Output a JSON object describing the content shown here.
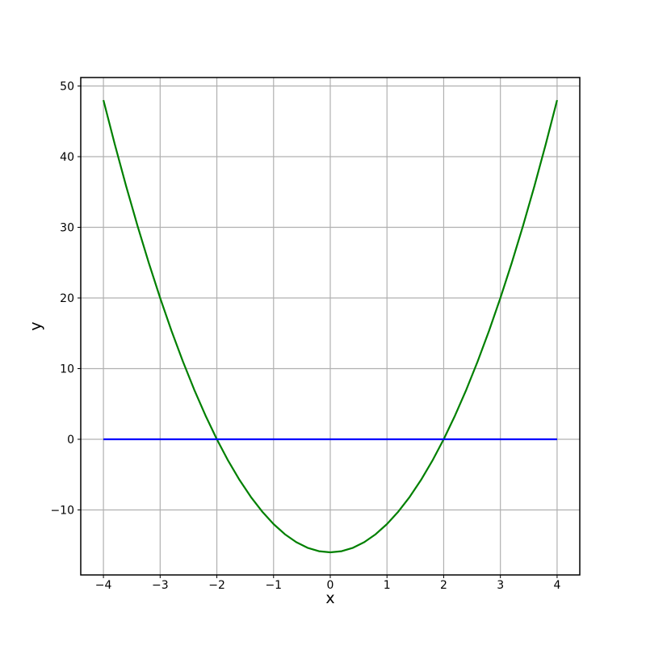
{
  "chart_data": {
    "type": "line",
    "title": "",
    "xlabel": "x",
    "ylabel": "y",
    "xlim": [
      -4.4,
      4.4
    ],
    "ylim": [
      -19.2,
      51.2
    ],
    "grid": true,
    "grid_color": "#b0b0b0",
    "spine_color": "#000000",
    "tick_color": "#000000",
    "text_color": "#000000",
    "background_color": "#ffffff",
    "legend": "none",
    "x_ticks": [
      {
        "value": -4,
        "label": "−4"
      },
      {
        "value": -3,
        "label": "−3"
      },
      {
        "value": -2,
        "label": "−2"
      },
      {
        "value": -1,
        "label": "−1"
      },
      {
        "value": 0,
        "label": "0"
      },
      {
        "value": 1,
        "label": "1"
      },
      {
        "value": 2,
        "label": "2"
      },
      {
        "value": 3,
        "label": "3"
      },
      {
        "value": 4,
        "label": "4"
      }
    ],
    "y_ticks": [
      {
        "value": -10,
        "label": "−10"
      },
      {
        "value": 0,
        "label": "0"
      },
      {
        "value": 10,
        "label": "10"
      },
      {
        "value": 20,
        "label": "20"
      },
      {
        "value": 30,
        "label": "30"
      },
      {
        "value": 40,
        "label": "40"
      },
      {
        "value": 50,
        "label": "50"
      }
    ],
    "series": [
      {
        "name": "green-parabola",
        "color": "#008000",
        "line_width": 2.2,
        "x": [
          -4,
          -3.8,
          -3.6,
          -3.4,
          -3.2,
          -3,
          -2.8,
          -2.6,
          -2.4,
          -2.2,
          -2,
          -1.8,
          -1.6,
          -1.4,
          -1.2,
          -1,
          -0.8,
          -0.6,
          -0.4,
          -0.2,
          0,
          0.2,
          0.4,
          0.6,
          0.8,
          1,
          1.2,
          1.4,
          1.6,
          1.8,
          2,
          2.2,
          2.4,
          2.6,
          2.8,
          3,
          3.2,
          3.4,
          3.6,
          3.8,
          4
        ],
        "y": [
          48,
          41.76,
          35.84,
          30.24,
          24.96,
          20,
          15.36,
          11.04,
          7.04,
          3.36,
          0,
          -3.04,
          -5.76,
          -8.16,
          -10.24,
          -12,
          -13.44,
          -14.56,
          -15.36,
          -15.84,
          -16,
          -15.84,
          -15.36,
          -14.56,
          -13.44,
          -12,
          -10.24,
          -8.16,
          -5.76,
          -3.04,
          0,
          3.36,
          7.04,
          11.04,
          15.36,
          20,
          24.96,
          30.24,
          35.84,
          41.76,
          48
        ]
      },
      {
        "name": "blue-horizontal-line",
        "color": "#0000ff",
        "line_width": 2.2,
        "x": [
          -4,
          4
        ],
        "y": [
          0,
          0
        ]
      }
    ]
  }
}
